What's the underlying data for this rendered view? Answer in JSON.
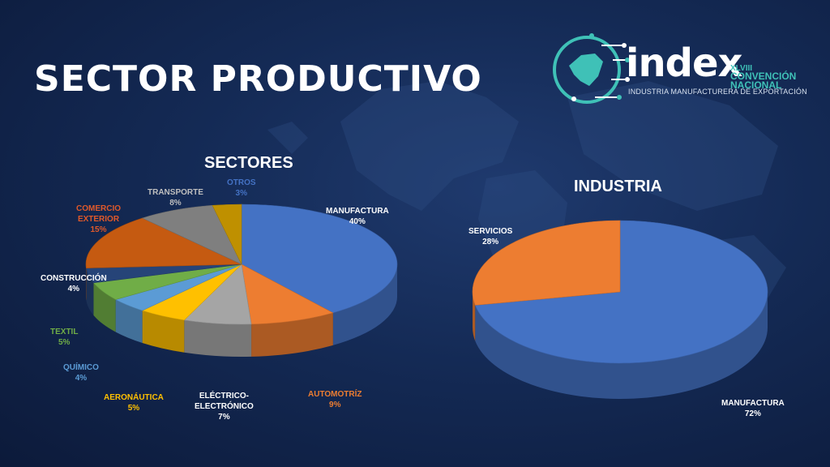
{
  "slide_title": "SECTOR PRODUCTIVO",
  "logo": {
    "word": "index",
    "edition": "XLVIII",
    "line1": "CONVENCIÓN",
    "line2": "NACIONAL",
    "subtitle": "INDUSTRIA MANUFACTURERA DE EXPORTACIÓN",
    "accent_color": "#3fc1b7"
  },
  "chart_data": [
    {
      "type": "pie",
      "title": "SECTORES",
      "style": "3d",
      "slices": [
        {
          "label": "MANUFACTURA",
          "value": 40,
          "value_label": "40%",
          "color": "#4472c4",
          "label_color": "#ffffff"
        },
        {
          "label": "AUTOMOTRÍZ",
          "value": 9,
          "value_label": "9%",
          "color": "#ed7d31",
          "label_color": "#ed7d31"
        },
        {
          "label": "ELÉCTRICO-ELECTRÓNICO",
          "label_lines": [
            "ELÉCTRICO-",
            "ELECTRÓNICO"
          ],
          "value": 7,
          "value_label": "7%",
          "color": "#a5a5a5",
          "label_color": "#ffffff"
        },
        {
          "label": "AERONÁUTICA",
          "value": 5,
          "value_label": "5%",
          "color": "#ffc000",
          "label_color": "#ffc000"
        },
        {
          "label": "QUÍMICO",
          "value": 4,
          "value_label": "4%",
          "color": "#5b9bd5",
          "label_color": "#5b9bd5"
        },
        {
          "label": "TEXTIL",
          "value": 5,
          "value_label": "5%",
          "color": "#70ad47",
          "label_color": "#70ad47"
        },
        {
          "label": "CONSTRUCCIÓN",
          "value": 4,
          "value_label": "4%",
          "color": "#264478",
          "label_color": "#ffffff"
        },
        {
          "label": "COMERCIO EXTERIOR",
          "label_lines": [
            "COMERCIO",
            "EXTERIOR"
          ],
          "value": 15,
          "value_label": "15%",
          "color": "#c55a11",
          "label_color": "#e0592a"
        },
        {
          "label": "TRANSPORTE",
          "value": 8,
          "value_label": "8%",
          "color": "#7f7f7f",
          "label_color": "#bfbfbf"
        },
        {
          "label": "OTROS",
          "value": 3,
          "value_label": "3%",
          "color": "#bf9000",
          "label_color": "#4472c4"
        }
      ]
    },
    {
      "type": "pie",
      "title": "INDUSTRIA",
      "style": "3d",
      "slices": [
        {
          "label": "MANUFACTURA",
          "value": 72,
          "value_label": "72%",
          "color": "#4472c4",
          "label_color": "#ffffff"
        },
        {
          "label": "SERVICIOS",
          "value": 28,
          "value_label": "28%",
          "color": "#ed7d31",
          "label_color": "#ffffff"
        }
      ]
    }
  ]
}
